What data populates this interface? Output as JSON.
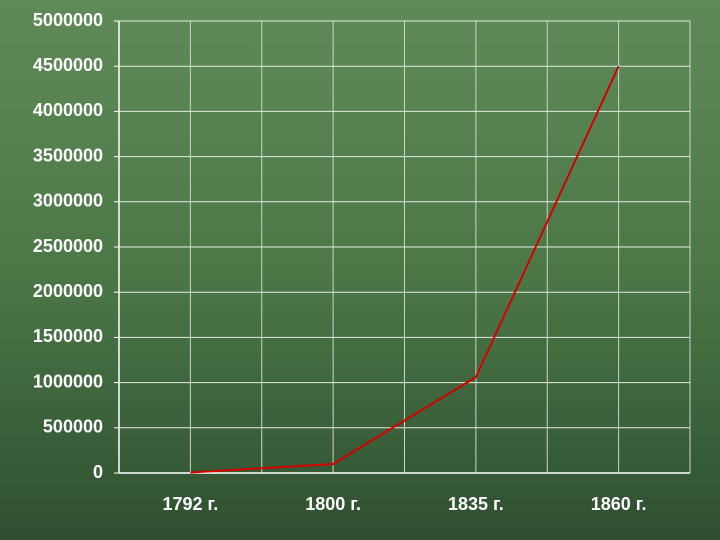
{
  "chart_data": {
    "type": "line",
    "categories": [
      "1792 г.",
      "1800 г.",
      "1835 г.",
      "1860 г."
    ],
    "series": [
      {
        "color": "#d40000",
        "values": [
          5000,
          100000,
          1060000,
          4500000
        ]
      }
    ],
    "ylim": [
      0,
      5000000
    ],
    "yticks": [
      0,
      500000,
      1000000,
      1500000,
      2000000,
      2500000,
      3000000,
      3500000,
      4000000,
      4500000,
      5000000
    ],
    "grid": true
  }
}
